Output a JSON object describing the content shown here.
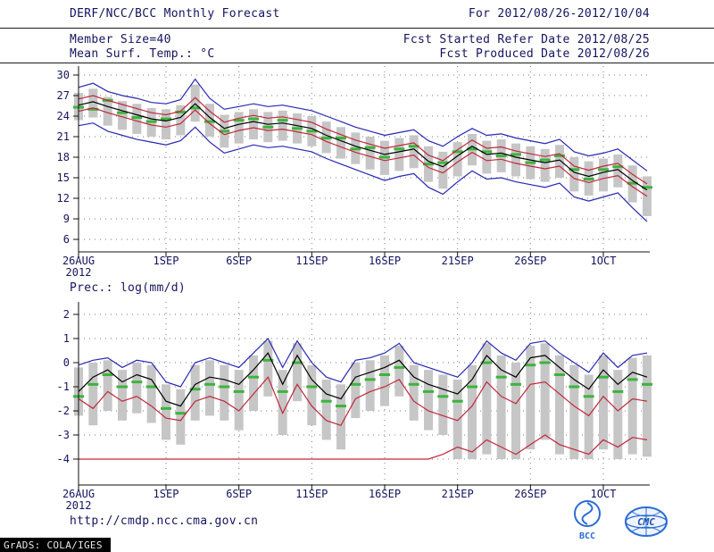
{
  "header": {
    "title": "DERF/NCC/BCC Monthly Forecast",
    "member_size": "Member Size=40",
    "variable_label": "Mean Surf. Temp.: °C",
    "for_range": "For 2012/08/26-2012/10/04",
    "fcst_started": "Fcst Started Refer Date 2012/08/25",
    "fcst_produced": "Fcst Produced Date 2012/08/26"
  },
  "footer": {
    "url": "http://cmdp.ncc.cma.gov.cn",
    "grads_credit": "GrADS: COLA/IGES",
    "logo1": "BCC",
    "logo2": "CMC"
  },
  "colors": {
    "text": "#14145f",
    "blue_line": "#2727b4",
    "red_line": "#c2263c",
    "black_line": "#000000",
    "green_dash": "#3cb43c",
    "bar_gray": "#c6c6c6"
  },
  "chart_data": [
    {
      "id": "temperature-chart",
      "type": "line",
      "title": "Mean Surf. Temp.: °C",
      "ylim": [
        6,
        30
      ],
      "yticks": [
        6,
        9,
        12,
        15,
        18,
        21,
        24,
        27,
        30
      ],
      "x_tick_labels": [
        "26AUG",
        "1SEP",
        "6SEP",
        "11SEP",
        "16SEP",
        "21SEP",
        "26SEP",
        "1OCT"
      ],
      "x_tick_days": [
        0,
        6,
        11,
        16,
        21,
        26,
        31,
        36
      ],
      "x_sub_label": "2012",
      "n_days": 40,
      "grid": true,
      "series": [
        {
          "name": "ensemble-max",
          "color": "#2727b4",
          "values": [
            28.2,
            28.8,
            27.6,
            27.0,
            26.6,
            26.0,
            25.8,
            26.4,
            29.4,
            26.6,
            25.0,
            25.4,
            25.8,
            25.4,
            25.6,
            25.2,
            24.8,
            24.0,
            23.2,
            22.4,
            21.8,
            21.2,
            21.6,
            22.0,
            20.4,
            19.6,
            21.0,
            22.2,
            21.2,
            21.4,
            20.8,
            20.4,
            20.0,
            20.6,
            18.8,
            18.2,
            18.6,
            19.2,
            17.6,
            16.0
          ]
        },
        {
          "name": "ensemble-min",
          "color": "#2727b4",
          "values": [
            22.6,
            23.0,
            21.8,
            21.2,
            20.6,
            20.2,
            19.8,
            20.4,
            22.4,
            20.2,
            18.6,
            19.2,
            19.8,
            19.4,
            19.6,
            19.2,
            18.8,
            17.8,
            17.0,
            16.2,
            15.4,
            14.6,
            15.2,
            15.6,
            13.6,
            12.6,
            14.4,
            16.0,
            14.8,
            15.0,
            14.4,
            14.0,
            13.6,
            14.2,
            12.2,
            11.6,
            12.2,
            12.8,
            10.6,
            8.6
          ]
        },
        {
          "name": "upper-quartile",
          "color": "#c2263c",
          "values": [
            26.5,
            27.0,
            26.3,
            25.7,
            25.1,
            24.5,
            24.2,
            24.7,
            26.7,
            24.7,
            23.1,
            23.7,
            24.1,
            23.7,
            23.9,
            23.5,
            23.1,
            22.1,
            21.3,
            20.5,
            19.9,
            19.3,
            19.7,
            20.1,
            18.3,
            17.5,
            19.1,
            20.5,
            19.3,
            19.5,
            18.9,
            18.5,
            18.1,
            18.5,
            16.7,
            16.1,
            16.7,
            17.1,
            15.5,
            14.1
          ]
        },
        {
          "name": "lower-quartile",
          "color": "#c2263c",
          "values": [
            24.7,
            25.2,
            24.5,
            23.9,
            23.3,
            22.7,
            22.4,
            22.9,
            24.9,
            22.9,
            21.3,
            21.9,
            22.3,
            21.9,
            22.1,
            21.7,
            21.3,
            20.3,
            19.5,
            18.7,
            18.1,
            17.5,
            17.9,
            18.3,
            16.5,
            15.7,
            17.3,
            18.7,
            17.5,
            17.7,
            17.1,
            16.7,
            16.3,
            16.7,
            14.9,
            14.3,
            14.9,
            15.3,
            13.7,
            12.3
          ]
        },
        {
          "name": "ensemble-mean",
          "color": "#000000",
          "values": [
            25.6,
            26.1,
            25.4,
            24.8,
            24.2,
            23.6,
            23.3,
            23.8,
            25.8,
            23.8,
            22.2,
            22.8,
            23.2,
            22.8,
            23.0,
            22.6,
            22.2,
            21.2,
            20.4,
            19.6,
            19.0,
            18.4,
            18.8,
            19.2,
            17.4,
            16.6,
            18.2,
            19.6,
            18.4,
            18.6,
            18.0,
            17.6,
            17.2,
            17.6,
            15.8,
            15.2,
            15.8,
            16.2,
            14.6,
            13.2
          ]
        }
      ],
      "dashes": {
        "name": "member-median",
        "color": "#3cb43c",
        "values": [
          25.3,
          25.0,
          26.3,
          24.5,
          23.8,
          23.2,
          23.6,
          24.6,
          25.2,
          23.2,
          21.8,
          23.4,
          23.6,
          22.4,
          23.4,
          22.2,
          21.8,
          20.8,
          20.8,
          19.2,
          19.4,
          18.0,
          19.2,
          19.6,
          17.0,
          17.2,
          18.8,
          19.2,
          18.8,
          18.2,
          18.4,
          17.2,
          17.6,
          18.2,
          16.2,
          14.8,
          16.2,
          16.6,
          14.2,
          13.6
        ]
      },
      "bars": {
        "color": "#c6c6c6",
        "high": [
          27.4,
          28.0,
          26.8,
          26.2,
          25.8,
          25.2,
          25.0,
          25.6,
          28.6,
          25.8,
          24.2,
          24.6,
          25.0,
          24.6,
          24.8,
          24.4,
          24.0,
          23.2,
          22.4,
          21.6,
          21.0,
          20.4,
          20.8,
          21.2,
          19.6,
          18.8,
          20.2,
          21.4,
          20.4,
          20.6,
          20.0,
          19.6,
          19.2,
          19.8,
          18.0,
          17.4,
          17.8,
          18.4,
          16.8,
          15.2
        ],
        "low": [
          23.4,
          23.8,
          22.6,
          22.0,
          21.4,
          21.0,
          20.6,
          21.2,
          23.2,
          21.0,
          19.4,
          20.0,
          20.6,
          20.2,
          20.4,
          20.0,
          19.6,
          18.6,
          17.8,
          17.0,
          16.2,
          15.4,
          16.0,
          16.4,
          14.4,
          13.4,
          15.2,
          16.8,
          15.6,
          15.8,
          15.2,
          14.8,
          14.4,
          15.0,
          13.0,
          12.4,
          13.0,
          13.6,
          11.4,
          9.4
        ]
      }
    },
    {
      "id": "precipitation-chart",
      "type": "line",
      "title": "Prec.: log(mm/d)",
      "ylim": [
        -4,
        2
      ],
      "yticks": [
        -4,
        -3,
        -2,
        -1,
        0,
        1,
        2
      ],
      "x_tick_labels": [
        "26AUG",
        "1SEP",
        "6SEP",
        "11SEP",
        "16SEP",
        "21SEP",
        "26SEP",
        "1OCT"
      ],
      "x_tick_days": [
        0,
        6,
        11,
        16,
        21,
        26,
        31,
        36
      ],
      "x_sub_label": "2012",
      "n_days": 40,
      "grid": true,
      "series": [
        {
          "name": "ensemble-max",
          "color": "#2727b4",
          "values": [
            -0.1,
            0.1,
            0.2,
            -0.2,
            0.1,
            0.0,
            -0.8,
            -1.0,
            0.0,
            0.2,
            0.0,
            -0.2,
            0.4,
            1.0,
            -0.2,
            0.9,
            0.0,
            -0.6,
            -0.8,
            0.1,
            0.2,
            0.4,
            0.8,
            0.0,
            -0.2,
            -0.4,
            -0.6,
            0.0,
            0.9,
            0.4,
            0.1,
            0.8,
            0.9,
            0.4,
            0.0,
            -0.4,
            0.4,
            -0.2,
            0.3,
            0.4
          ]
        },
        {
          "name": "lower-quartile",
          "color": "#c2263c",
          "values": [
            -1.5,
            -1.9,
            -1.2,
            -1.6,
            -1.4,
            -1.8,
            -2.3,
            -2.4,
            -1.6,
            -1.4,
            -1.6,
            -2.0,
            -1.3,
            -0.6,
            -2.1,
            -0.9,
            -1.8,
            -2.4,
            -2.6,
            -1.5,
            -1.2,
            -1.0,
            -0.7,
            -1.6,
            -2.0,
            -2.2,
            -2.4,
            -1.8,
            -0.8,
            -1.4,
            -1.7,
            -0.9,
            -0.8,
            -1.3,
            -1.8,
            -2.2,
            -1.4,
            -2.0,
            -1.5,
            -1.6
          ]
        },
        {
          "name": "ensemble-min",
          "color": "#c2263c",
          "values": [
            -4.0,
            -4.0,
            -4.0,
            -4.0,
            -4.0,
            -4.0,
            -4.0,
            -4.0,
            -4.0,
            -4.0,
            -4.0,
            -4.0,
            -4.0,
            -4.0,
            -4.0,
            -4.0,
            -4.0,
            -4.0,
            -4.0,
            -4.0,
            -4.0,
            -4.0,
            -4.0,
            -4.0,
            -4.0,
            -3.8,
            -3.5,
            -3.7,
            -3.2,
            -3.5,
            -3.8,
            -3.4,
            -3.0,
            -3.4,
            -3.6,
            -3.8,
            -3.2,
            -3.5,
            -3.1,
            -3.2
          ]
        },
        {
          "name": "ensemble-mean",
          "color": "#000000",
          "values": [
            -1.2,
            -0.6,
            -0.3,
            -0.8,
            -0.5,
            -0.7,
            -1.6,
            -1.8,
            -0.9,
            -0.6,
            -0.7,
            -0.9,
            -0.3,
            0.4,
            -0.9,
            0.3,
            -0.7,
            -1.3,
            -1.5,
            -0.6,
            -0.4,
            -0.2,
            0.1,
            -0.6,
            -0.9,
            -1.1,
            -1.3,
            -0.7,
            0.3,
            -0.3,
            -0.6,
            0.2,
            0.3,
            -0.2,
            -0.7,
            -1.1,
            -0.3,
            -0.9,
            -0.4,
            -0.6
          ]
        }
      ],
      "dashes": {
        "name": "member-median",
        "color": "#3cb43c",
        "values": [
          -1.4,
          -0.9,
          -0.5,
          -1.0,
          -0.8,
          -1.0,
          -1.9,
          -2.1,
          -1.1,
          -0.9,
          -1.0,
          -1.2,
          -0.6,
          0.1,
          -1.2,
          0.0,
          -1.0,
          -1.6,
          -1.8,
          -0.9,
          -0.7,
          -0.5,
          -0.2,
          -0.9,
          -1.2,
          -1.4,
          -1.6,
          -1.0,
          0.0,
          -0.6,
          -0.9,
          -0.1,
          0.0,
          -0.5,
          -1.0,
          -1.4,
          -0.6,
          -1.2,
          -0.7,
          -0.9
        ]
      },
      "bars": {
        "color": "#c6c6c6",
        "high": [
          -0.2,
          0.0,
          0.1,
          -0.3,
          0.0,
          -0.1,
          -0.9,
          -1.1,
          -0.1,
          0.1,
          -0.1,
          -0.3,
          0.3,
          0.9,
          -0.3,
          0.8,
          -0.1,
          -0.7,
          -0.9,
          0.0,
          0.1,
          0.3,
          0.7,
          -0.1,
          -0.3,
          -0.5,
          -0.7,
          -0.1,
          0.8,
          0.3,
          0.0,
          0.7,
          0.8,
          0.3,
          -0.1,
          -0.5,
          0.3,
          -0.3,
          0.2,
          0.3
        ],
        "low": [
          -2.2,
          -2.6,
          -2.0,
          -2.4,
          -2.1,
          -2.5,
          -3.2,
          -3.4,
          -2.4,
          -2.2,
          -2.4,
          -2.8,
          -2.0,
          -1.4,
          -3.0,
          -1.6,
          -2.6,
          -3.2,
          -3.6,
          -2.3,
          -2.0,
          -1.8,
          -1.4,
          -2.4,
          -2.8,
          -3.0,
          -4.0,
          -4.0,
          -3.8,
          -4.0,
          -4.0,
          -3.6,
          -3.2,
          -3.8,
          -4.0,
          -4.0,
          -3.6,
          -4.0,
          -3.8,
          -3.9
        ]
      }
    }
  ]
}
